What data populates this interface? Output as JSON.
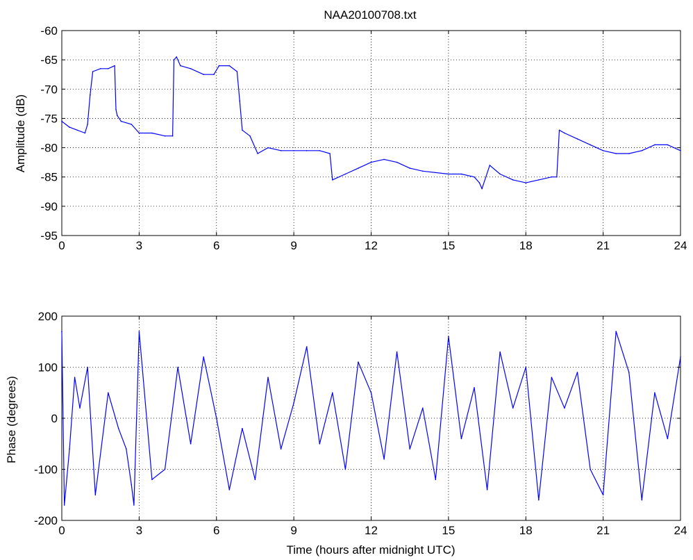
{
  "chart_data": [
    {
      "type": "line",
      "title": "NAA20100708.txt",
      "xlabel": "",
      "ylabel": "Amplitude (dB)",
      "xlim": [
        0,
        24
      ],
      "ylim": [
        -95,
        -60
      ],
      "xticks": [
        "0",
        "3",
        "6",
        "9",
        "12",
        "15",
        "18",
        "21",
        "24"
      ],
      "yticks": [
        "-95",
        "-90",
        "-85",
        "-80",
        "-75",
        "-70",
        "-65",
        "-60"
      ],
      "grid": true,
      "line_color": "#0000ff",
      "series": [
        {
          "x": [
            0,
            0.3,
            0.6,
            0.9,
            1.0,
            1.1,
            1.2,
            1.5,
            1.8,
            2.05,
            2.1,
            2.15,
            2.3,
            2.7,
            3.0,
            3.5,
            4.0,
            4.3,
            4.35,
            4.45,
            4.6,
            5.0,
            5.5,
            5.9,
            6.1,
            6.5,
            6.8,
            6.9,
            7.0,
            7.3,
            7.6,
            8.0,
            8.5,
            9.0,
            9.5,
            10.0,
            10.4,
            10.5,
            11.0,
            11.5,
            12.0,
            12.5,
            13.0,
            13.5,
            14.0,
            15.0,
            15.5,
            16.0,
            16.2,
            16.3,
            16.6,
            17.0,
            17.5,
            18.0,
            18.5,
            19.0,
            19.2,
            19.3,
            19.5,
            20.0,
            20.5,
            21.0,
            21.5,
            22.0,
            22.5,
            23.0,
            23.5,
            24.0
          ],
          "y": [
            -75.5,
            -76.5,
            -77,
            -77.5,
            -76,
            -71,
            -67,
            -66.5,
            -66.5,
            -66,
            -73.5,
            -74.5,
            -75.5,
            -76,
            -77.5,
            -77.5,
            -78,
            -78,
            -65,
            -64.5,
            -66,
            -66.5,
            -67.5,
            -67.5,
            -66,
            -66,
            -67,
            -72,
            -77,
            -78,
            -81,
            -80,
            -80.5,
            -80.5,
            -80.5,
            -80.5,
            -81,
            -85.5,
            -84.5,
            -83.5,
            -82.5,
            -82,
            -82.5,
            -83.5,
            -84,
            -84.5,
            -84.5,
            -85,
            -86,
            -87,
            -83,
            -84.5,
            -85.5,
            -86,
            -85.5,
            -85,
            -85,
            -77,
            -77.5,
            -78.5,
            -79.5,
            -80.5,
            -81,
            -81,
            -80.5,
            -79.5,
            -79.5,
            -80.5
          ]
        }
      ]
    },
    {
      "type": "line",
      "title": "",
      "xlabel": "Time (hours after midnight UTC)",
      "ylabel": "Phase (degrees)",
      "xlim": [
        0,
        24
      ],
      "ylim": [
        -200,
        200
      ],
      "xticks": [
        "0",
        "3",
        "6",
        "9",
        "12",
        "15",
        "18",
        "21",
        "24"
      ],
      "yticks": [
        "-200",
        "-100",
        "0",
        "100",
        "200"
      ],
      "grid": true,
      "line_color": "#0000ff",
      "series": [
        {
          "x": [
            0,
            0.1,
            0.3,
            0.5,
            0.7,
            1.0,
            1.3,
            1.8,
            2.2,
            2.5,
            2.7,
            2.8,
            3.0,
            3.5,
            4.0,
            4.5,
            5.0,
            5.5,
            6.0,
            6.5,
            7.0,
            7.5,
            8.0,
            8.5,
            9.0,
            9.5,
            10.0,
            10.5,
            11.0,
            11.5,
            12.0,
            12.5,
            13.0,
            13.5,
            14.0,
            14.5,
            15.0,
            15.5,
            16.0,
            16.5,
            17.0,
            17.5,
            18.0,
            18.5,
            19.0,
            19.5,
            20.0,
            20.5,
            21.0,
            21.5,
            22.0,
            22.5,
            23.0,
            23.5,
            24.0
          ],
          "y": [
            170,
            -170,
            -60,
            80,
            20,
            100,
            -150,
            50,
            -20,
            -60,
            -130,
            -170,
            170,
            -120,
            -100,
            100,
            -50,
            120,
            0,
            -140,
            -20,
            -120,
            80,
            -60,
            30,
            140,
            -50,
            50,
            -100,
            110,
            50,
            -80,
            130,
            -60,
            20,
            -120,
            160,
            -40,
            60,
            -140,
            130,
            20,
            100,
            -160,
            80,
            20,
            90,
            -100,
            -150,
            170,
            90,
            -160,
            50,
            -40,
            120
          ]
        }
      ]
    }
  ]
}
